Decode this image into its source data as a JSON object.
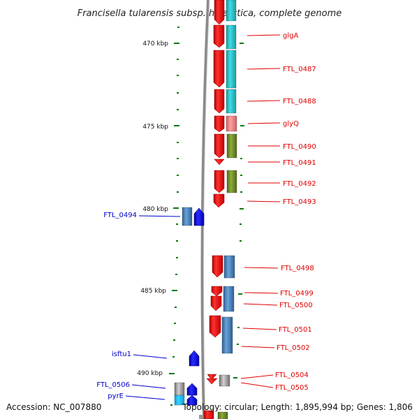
{
  "title": "Francisella tularensis subsp. holarctica, complete genome",
  "scale_ticks": [
    "470 kbp",
    "475 kbp",
    "480 kbp",
    "485 kbp",
    "490 kbp"
  ],
  "gene_labels": {
    "glgA": "glgA",
    "FTL_0487": "FTL_0487",
    "FTL_0488": "FTL_0488",
    "glyQ": "glyQ",
    "FTL_0490": "FTL_0490",
    "FTL_0491": "FTL_0491",
    "FTL_0492": "FTL_0492",
    "FTL_0493": "FTL_0493",
    "FTL_0494": "FTL_0494",
    "FTL_0498": "FTL_0498",
    "FTL_0499": "FTL_0499",
    "FTL_0500": "FTL_0500",
    "FTL_0501": "FTL_0501",
    "FTL_0502": "FTL_0502",
    "isftu1": "isftu1",
    "FTL_0504": "FTL_0504",
    "FTL_0505": "FTL_0505",
    "FTL_0506": "FTL_0506",
    "pyrE": "pyrE"
  },
  "footer": {
    "accession": "Accession: NC_007880",
    "summary": "Topology: circular; Length: 1,895,994 bp; Genes: 1,806"
  },
  "colors": {
    "plus_strand_gene": "#ff1a1a",
    "minus_strand_gene": "#1a1aff",
    "cog_cyan": "#2ec4cc",
    "cog_steelblue": "#4a86c0",
    "cog_olive": "#6f8f2a",
    "cog_pink": "#f08080",
    "cog_grey": "#9a9a9a",
    "tick_green": "#0a7a0a",
    "backbone": "#888888"
  }
}
